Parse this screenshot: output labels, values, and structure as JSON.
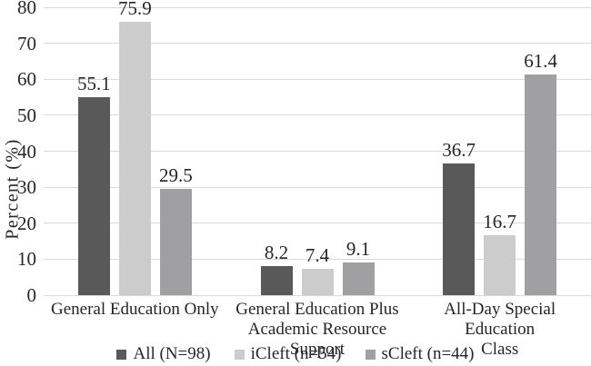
{
  "chart_data": {
    "type": "bar",
    "title": "",
    "xlabel": "",
    "ylabel": "Percent (%)",
    "ylim": [
      0,
      80
    ],
    "yticks": [
      0,
      10,
      20,
      30,
      40,
      50,
      60,
      70,
      80
    ],
    "grid": "horizontal",
    "gridline_color": "#d9d9d9",
    "legend_position": "bottom",
    "text_color": "#262626",
    "categories": [
      "General Education Only",
      "General Education Plus Academic Resource Support",
      "All-Day Special Education Class"
    ],
    "category_lines": [
      [
        "General Education Only"
      ],
      [
        "General Education Plus",
        "Academic Resource Support"
      ],
      [
        "All-Day Special Education",
        "Class"
      ]
    ],
    "series": [
      {
        "name": "All (N=98)",
        "color": "#595959",
        "values": [
          55.1,
          8.2,
          36.7
        ]
      },
      {
        "name": "iCleft (n=54)",
        "color": "#cccccc",
        "values": [
          75.9,
          7.4,
          16.7
        ]
      },
      {
        "name": "sCleft (n=44)",
        "color": "#a0a0a2",
        "values": [
          29.5,
          9.1,
          61.4
        ]
      }
    ],
    "data_labels_shown": true
  }
}
